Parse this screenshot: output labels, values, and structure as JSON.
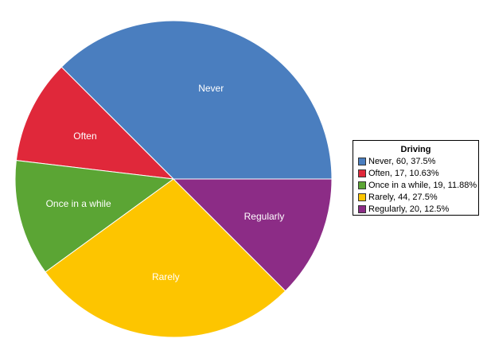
{
  "chart_data": {
    "type": "pie",
    "title": "",
    "legend_title": "Driving",
    "legend_position": "right",
    "slices": [
      {
        "label": "Never",
        "value": 60,
        "percent": 37.5,
        "legend": "Never, 60, 37.5%",
        "color": "#4a7ebf"
      },
      {
        "label": "Often",
        "value": 17,
        "percent": 10.63,
        "legend": "Often, 17, 10.63%",
        "color": "#e0283a"
      },
      {
        "label": "Once in a while",
        "value": 19,
        "percent": 11.88,
        "legend": "Once in a while, 19, 11.88%",
        "color": "#5ba534"
      },
      {
        "label": "Rarely",
        "value": 44,
        "percent": 27.5,
        "legend": "Rarely, 44, 27.5%",
        "color": "#fdc500"
      },
      {
        "label": "Regularly",
        "value": 20,
        "percent": 12.5,
        "legend": "Regularly, 20, 12.5%",
        "color": "#8c2c86"
      }
    ]
  }
}
